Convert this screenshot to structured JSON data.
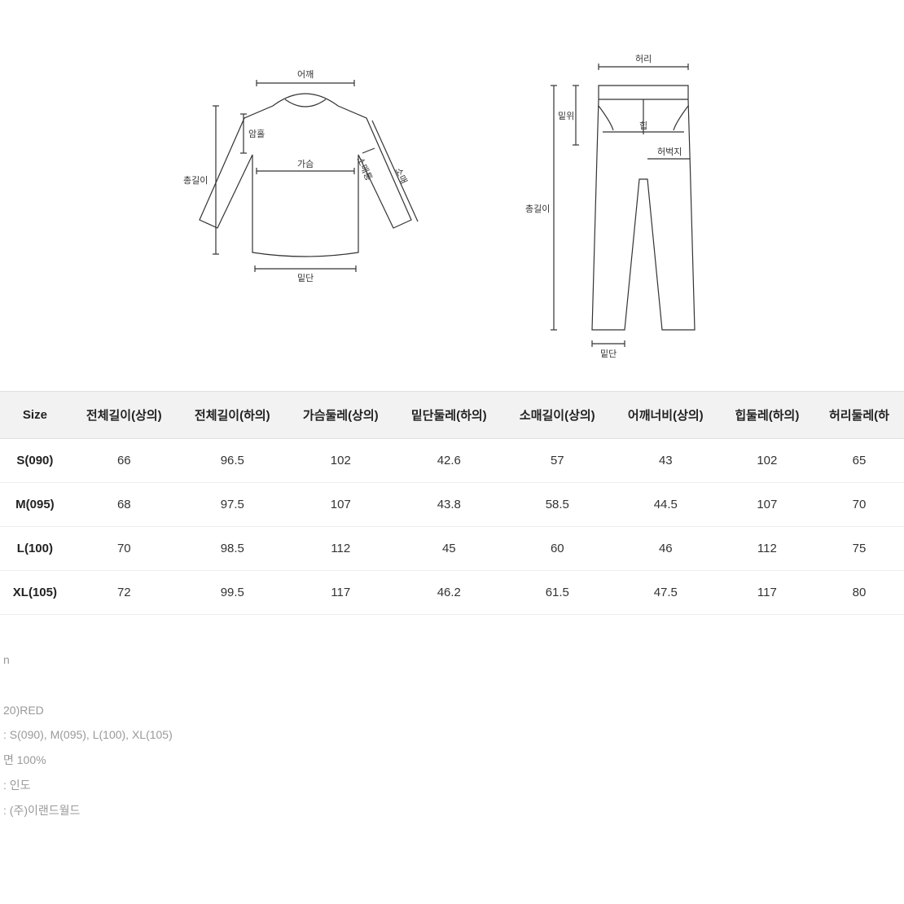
{
  "diagrams": {
    "shirt": {
      "labels": {
        "shoulder": "어깨",
        "armhole": "암홀",
        "chest": "가슴",
        "sleeve_width": "소매통",
        "sleeve": "소매",
        "total_length": "총길이",
        "hem": "밑단"
      },
      "stroke_color": "#333333",
      "fill_color": "#ffffff",
      "font_size": 11
    },
    "pants": {
      "labels": {
        "waist": "허리",
        "rise": "밑위",
        "hip": "힙",
        "thigh": "허벅지",
        "total_length": "총길이",
        "hem": "밑단"
      },
      "stroke_color": "#333333",
      "fill_color": "#ffffff",
      "font_size": 11
    }
  },
  "size_table": {
    "header_bg": "#f2f2f2",
    "border_color": "#e0e0e0",
    "row_border_color": "#eeeeee",
    "text_color": "#333333",
    "header_font_weight": 700,
    "cell_font_size": 15,
    "columns": [
      "Size",
      "전체길이(상의)",
      "전체길이(하의)",
      "가슴둘레(상의)",
      "밑단둘레(하의)",
      "소매길이(상의)",
      "어깨너비(상의)",
      "힙둘레(하의)",
      "허리둘레(하"
    ],
    "rows": [
      {
        "size": "S(090)",
        "values": [
          "66",
          "96.5",
          "102",
          "42.6",
          "57",
          "43",
          "102",
          "65"
        ]
      },
      {
        "size": "M(095)",
        "values": [
          "68",
          "97.5",
          "107",
          "43.8",
          "58.5",
          "44.5",
          "107",
          "70"
        ]
      },
      {
        "size": "L(100)",
        "values": [
          "70",
          "98.5",
          "112",
          "45",
          "60",
          "46",
          "112",
          "75"
        ]
      },
      {
        "size": "XL(105)",
        "values": [
          "72",
          "99.5",
          "117",
          "46.2",
          "61.5",
          "47.5",
          "117",
          "80"
        ]
      }
    ]
  },
  "product_info": {
    "text_color": "#999999",
    "font_size": 14,
    "lines": [
      "n",
      "",
      "20)RED",
      ": S(090), M(095), L(100), XL(105)",
      "면 100%",
      ": 인도",
      ": (주)이랜드월드"
    ]
  }
}
